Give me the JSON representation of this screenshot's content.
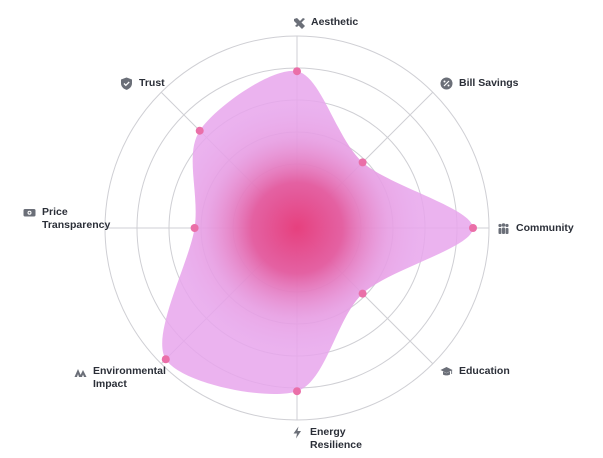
{
  "chart_data": {
    "type": "radar",
    "axes": [
      "Aesthetic",
      "Bill Savings",
      "Community",
      "Education",
      "Energy Resilience",
      "Environmental Impact",
      "Price Transparency",
      "Trust"
    ],
    "axis_lines": [
      [
        "Aesthetic"
      ],
      [
        "Bill Savings"
      ],
      [
        "Community"
      ],
      [
        "Education"
      ],
      [
        "Energy",
        "Resilience"
      ],
      [
        "Environmental",
        "Impact"
      ],
      [
        "Price",
        "Transparency"
      ],
      [
        "Trust"
      ]
    ],
    "icons": [
      "wrench-cross-icon",
      "percent-badge-icon",
      "people-icon",
      "graduation-cap-icon",
      "lightning-icon",
      "mountains-icon",
      "money-icon",
      "shield-icon"
    ],
    "values": [
      4.9,
      2.9,
      5.5,
      2.9,
      5.1,
      5.8,
      3.2,
      4.3
    ],
    "rmax": 6,
    "ring_count": 6,
    "grid": true,
    "colors": {
      "fill": "#e7a6ec",
      "center": "#e6407e",
      "marker": "#ea6fa8",
      "grid": "#cfcfd4",
      "text": "#2b2f38",
      "icon": "#6b6f78"
    }
  }
}
